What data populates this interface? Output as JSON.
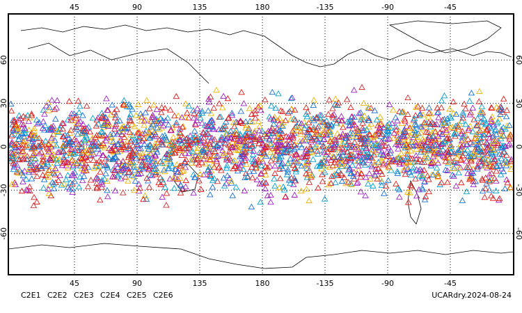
{
  "map": {
    "lon_ticks": [
      {
        "value": 45,
        "label": "45"
      },
      {
        "value": 90,
        "label": "90"
      },
      {
        "value": 135,
        "label": "135"
      },
      {
        "value": 180,
        "label": "180"
      },
      {
        "value": 225,
        "label": "-135"
      },
      {
        "value": 270,
        "label": "-90"
      },
      {
        "value": 315,
        "label": "-45"
      }
    ],
    "lat_ticks": [
      60,
      30,
      0,
      -30,
      -60
    ],
    "legend": [
      {
        "name": "C2E1",
        "color": "#00a0d0"
      },
      {
        "name": "C2E2",
        "color": "#a020c8"
      },
      {
        "name": "C2E3",
        "color": "#1870d8"
      },
      {
        "name": "C2E4",
        "color": "#d02828"
      },
      {
        "name": "C2E5",
        "color": "#e81818"
      },
      {
        "name": "C2E6",
        "color": "#f0b400"
      }
    ],
    "title": "UCARdry.2024-08-24"
  }
}
